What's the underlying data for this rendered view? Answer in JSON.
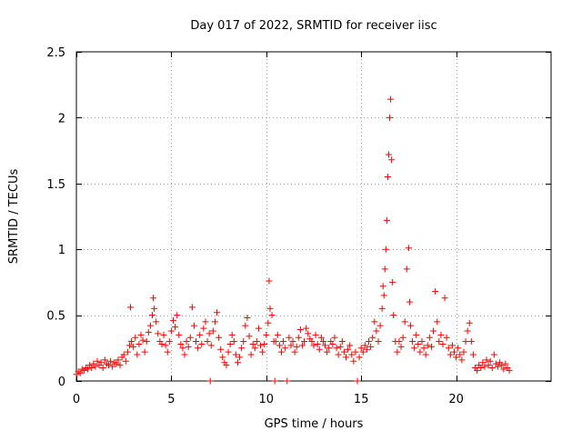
{
  "chart_data": {
    "type": "scatter",
    "title": "Day 017 of 2022, SRMTID for receiver iisc",
    "xlabel": "GPS time / hours",
    "ylabel": "SRMTID / TECUs",
    "xlim": [
      0,
      25
    ],
    "ylim": [
      0,
      2.5
    ],
    "x_ticks": [
      0,
      5,
      10,
      15,
      20
    ],
    "x_tick_labels": [
      "0",
      "5",
      "10",
      "15",
      "20"
    ],
    "y_ticks": [
      0,
      0.5,
      1,
      1.5,
      2,
      2.5
    ],
    "y_tick_labels": [
      "0",
      "0.5",
      "1",
      "1.5",
      "2",
      "2.5"
    ],
    "grid": true,
    "marker": "+",
    "color": "#ff0000",
    "series": [
      {
        "name": "SRMTID",
        "points": [
          [
            0.0,
            0.05
          ],
          [
            0.1,
            0.07
          ],
          [
            0.2,
            0.06
          ],
          [
            0.3,
            0.09
          ],
          [
            0.4,
            0.08
          ],
          [
            0.5,
            0.1
          ],
          [
            0.6,
            0.09
          ],
          [
            0.7,
            0.12
          ],
          [
            0.8,
            0.1
          ],
          [
            0.9,
            0.13
          ],
          [
            1.0,
            0.11
          ],
          [
            1.1,
            0.15
          ],
          [
            1.2,
            0.12
          ],
          [
            1.3,
            0.14
          ],
          [
            1.4,
            0.1
          ],
          [
            1.5,
            0.16
          ],
          [
            1.6,
            0.13
          ],
          [
            1.7,
            0.12
          ],
          [
            1.8,
            0.15
          ],
          [
            1.9,
            0.11
          ],
          [
            2.0,
            0.14
          ],
          [
            2.1,
            0.13
          ],
          [
            2.2,
            0.16
          ],
          [
            2.3,
            0.12
          ],
          [
            2.4,
            0.18
          ],
          [
            2.5,
            0.2
          ],
          [
            2.6,
            0.15
          ],
          [
            2.7,
            0.22
          ],
          [
            2.8,
            0.27
          ],
          [
            2.85,
            0.56
          ],
          [
            2.9,
            0.3
          ],
          [
            3.0,
            0.26
          ],
          [
            3.1,
            0.33
          ],
          [
            3.2,
            0.2
          ],
          [
            3.3,
            0.28
          ],
          [
            3.4,
            0.35
          ],
          [
            3.5,
            0.31
          ],
          [
            3.6,
            0.22
          ],
          [
            3.7,
            0.3
          ],
          [
            3.8,
            0.37
          ],
          [
            3.9,
            0.42
          ],
          [
            4.0,
            0.5
          ],
          [
            4.05,
            0.63
          ],
          [
            4.1,
            0.55
          ],
          [
            4.2,
            0.45
          ],
          [
            4.3,
            0.36
          ],
          [
            4.4,
            0.3
          ],
          [
            4.5,
            0.28
          ],
          [
            4.6,
            0.35
          ],
          [
            4.7,
            0.27
          ],
          [
            4.8,
            0.22
          ],
          [
            4.9,
            0.3
          ],
          [
            5.0,
            0.38
          ],
          [
            5.1,
            0.46
          ],
          [
            5.2,
            0.41
          ],
          [
            5.3,
            0.5
          ],
          [
            5.4,
            0.35
          ],
          [
            5.5,
            0.28
          ],
          [
            5.6,
            0.25
          ],
          [
            5.7,
            0.2
          ],
          [
            5.8,
            0.3
          ],
          [
            5.9,
            0.26
          ],
          [
            6.0,
            0.33
          ],
          [
            6.1,
            0.56
          ],
          [
            6.2,
            0.42
          ],
          [
            6.3,
            0.3
          ],
          [
            6.4,
            0.25
          ],
          [
            6.5,
            0.35
          ],
          [
            6.6,
            0.28
          ],
          [
            6.7,
            0.4
          ],
          [
            6.8,
            0.45
          ],
          [
            6.9,
            0.3
          ],
          [
            7.0,
            0.36
          ],
          [
            7.05,
            0.0
          ],
          [
            7.1,
            0.27
          ],
          [
            7.2,
            0.38
          ],
          [
            7.3,
            0.45
          ],
          [
            7.4,
            0.52
          ],
          [
            7.5,
            0.33
          ],
          [
            7.6,
            0.24
          ],
          [
            7.7,
            0.18
          ],
          [
            7.8,
            0.14
          ],
          [
            7.9,
            0.12
          ],
          [
            8.0,
            0.22
          ],
          [
            8.1,
            0.28
          ],
          [
            8.2,
            0.35
          ],
          [
            8.3,
            0.3
          ],
          [
            8.4,
            0.2
          ],
          [
            8.5,
            0.14
          ],
          [
            8.6,
            0.18
          ],
          [
            8.7,
            0.25
          ],
          [
            8.8,
            0.3
          ],
          [
            8.9,
            0.42
          ],
          [
            9.0,
            0.48
          ],
          [
            9.1,
            0.34
          ],
          [
            9.2,
            0.2
          ],
          [
            9.3,
            0.28
          ],
          [
            9.4,
            0.25
          ],
          [
            9.5,
            0.3
          ],
          [
            9.6,
            0.4
          ],
          [
            9.7,
            0.27
          ],
          [
            9.8,
            0.22
          ],
          [
            9.9,
            0.28
          ],
          [
            10.0,
            0.35
          ],
          [
            10.1,
            0.44
          ],
          [
            10.15,
            0.76
          ],
          [
            10.2,
            0.55
          ],
          [
            10.3,
            0.5
          ],
          [
            10.4,
            0.3
          ],
          [
            10.45,
            0.0
          ],
          [
            10.5,
            0.3
          ],
          [
            10.6,
            0.35
          ],
          [
            10.7,
            0.27
          ],
          [
            10.8,
            0.22
          ],
          [
            10.9,
            0.3
          ],
          [
            11.0,
            0.25
          ],
          [
            11.1,
            0.0
          ],
          [
            11.2,
            0.33
          ],
          [
            11.3,
            0.27
          ],
          [
            11.4,
            0.3
          ],
          [
            11.5,
            0.22
          ],
          [
            11.6,
            0.26
          ],
          [
            11.7,
            0.33
          ],
          [
            11.8,
            0.39
          ],
          [
            11.9,
            0.27
          ],
          [
            12.0,
            0.3
          ],
          [
            12.1,
            0.4
          ],
          [
            12.2,
            0.36
          ],
          [
            12.3,
            0.32
          ],
          [
            12.4,
            0.3
          ],
          [
            12.5,
            0.27
          ],
          [
            12.6,
            0.35
          ],
          [
            12.7,
            0.28
          ],
          [
            12.8,
            0.24
          ],
          [
            12.9,
            0.33
          ],
          [
            13.0,
            0.3
          ],
          [
            13.1,
            0.27
          ],
          [
            13.2,
            0.22
          ],
          [
            13.3,
            0.25
          ],
          [
            13.4,
            0.3
          ],
          [
            13.5,
            0.28
          ],
          [
            13.6,
            0.33
          ],
          [
            13.7,
            0.25
          ],
          [
            13.8,
            0.2
          ],
          [
            13.9,
            0.26
          ],
          [
            14.0,
            0.3
          ],
          [
            14.1,
            0.22
          ],
          [
            14.2,
            0.18
          ],
          [
            14.3,
            0.24
          ],
          [
            14.4,
            0.27
          ],
          [
            14.5,
            0.2
          ],
          [
            14.6,
            0.15
          ],
          [
            14.7,
            0.22
          ],
          [
            14.8,
            0.0
          ],
          [
            14.9,
            0.18
          ],
          [
            15.0,
            0.25
          ],
          [
            15.1,
            0.22
          ],
          [
            15.2,
            0.27
          ],
          [
            15.3,
            0.24
          ],
          [
            15.4,
            0.3
          ],
          [
            15.5,
            0.26
          ],
          [
            15.6,
            0.33
          ],
          [
            15.7,
            0.45
          ],
          [
            15.8,
            0.38
          ],
          [
            15.9,
            0.3
          ],
          [
            16.0,
            0.42
          ],
          [
            16.1,
            0.55
          ],
          [
            16.15,
            0.72
          ],
          [
            16.2,
            0.65
          ],
          [
            16.25,
            0.85
          ],
          [
            16.3,
            1.0
          ],
          [
            16.35,
            1.22
          ],
          [
            16.4,
            1.55
          ],
          [
            16.45,
            1.72
          ],
          [
            16.5,
            2.0
          ],
          [
            16.55,
            2.14
          ],
          [
            16.6,
            1.68
          ],
          [
            16.65,
            0.75
          ],
          [
            16.7,
            0.5
          ],
          [
            16.8,
            0.3
          ],
          [
            16.9,
            0.22
          ],
          [
            17.0,
            0.3
          ],
          [
            17.1,
            0.26
          ],
          [
            17.2,
            0.33
          ],
          [
            17.3,
            0.45
          ],
          [
            17.4,
            0.85
          ],
          [
            17.5,
            1.01
          ],
          [
            17.55,
            0.6
          ],
          [
            17.6,
            0.42
          ],
          [
            17.7,
            0.3
          ],
          [
            17.8,
            0.25
          ],
          [
            17.9,
            0.35
          ],
          [
            18.0,
            0.28
          ],
          [
            18.1,
            0.22
          ],
          [
            18.2,
            0.3
          ],
          [
            18.3,
            0.25
          ],
          [
            18.4,
            0.2
          ],
          [
            18.5,
            0.27
          ],
          [
            18.6,
            0.33
          ],
          [
            18.7,
            0.26
          ],
          [
            18.8,
            0.38
          ],
          [
            18.9,
            0.68
          ],
          [
            19.0,
            0.45
          ],
          [
            19.1,
            0.3
          ],
          [
            19.2,
            0.35
          ],
          [
            19.3,
            0.28
          ],
          [
            19.4,
            0.63
          ],
          [
            19.5,
            0.33
          ],
          [
            19.6,
            0.25
          ],
          [
            19.7,
            0.2
          ],
          [
            19.8,
            0.27
          ],
          [
            19.9,
            0.22
          ],
          [
            20.0,
            0.18
          ],
          [
            20.1,
            0.25
          ],
          [
            20.2,
            0.2
          ],
          [
            20.3,
            0.16
          ],
          [
            20.4,
            0.22
          ],
          [
            20.5,
            0.3
          ],
          [
            20.6,
            0.38
          ],
          [
            20.7,
            0.44
          ],
          [
            20.8,
            0.3
          ],
          [
            20.9,
            0.2
          ],
          [
            21.0,
            0.1
          ],
          [
            21.1,
            0.08
          ],
          [
            21.2,
            0.12
          ],
          [
            21.3,
            0.1
          ],
          [
            21.4,
            0.14
          ],
          [
            21.5,
            0.11
          ],
          [
            21.6,
            0.16
          ],
          [
            21.7,
            0.12
          ],
          [
            21.8,
            0.15
          ],
          [
            21.9,
            0.1
          ],
          [
            22.0,
            0.2
          ],
          [
            22.1,
            0.13
          ],
          [
            22.2,
            0.11
          ],
          [
            22.3,
            0.14
          ],
          [
            22.4,
            0.12
          ],
          [
            22.5,
            0.09
          ],
          [
            22.6,
            0.13
          ],
          [
            22.7,
            0.1
          ],
          [
            22.8,
            0.08
          ]
        ]
      }
    ]
  }
}
